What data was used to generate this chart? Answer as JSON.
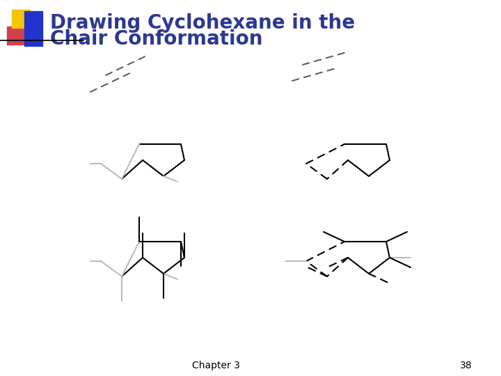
{
  "title_line1": "Drawing Cyclohexane in the",
  "title_line2": "Chair Conformation",
  "chapter": "Chapter 3",
  "page": "38",
  "bg_color": "#ffffff",
  "title_color": "#2b3990",
  "title_fontsize": 20,
  "lw": 1.5,
  "line_color": "#000000",
  "gray_color": "#bbbbbb",
  "dash_color": "#000000"
}
